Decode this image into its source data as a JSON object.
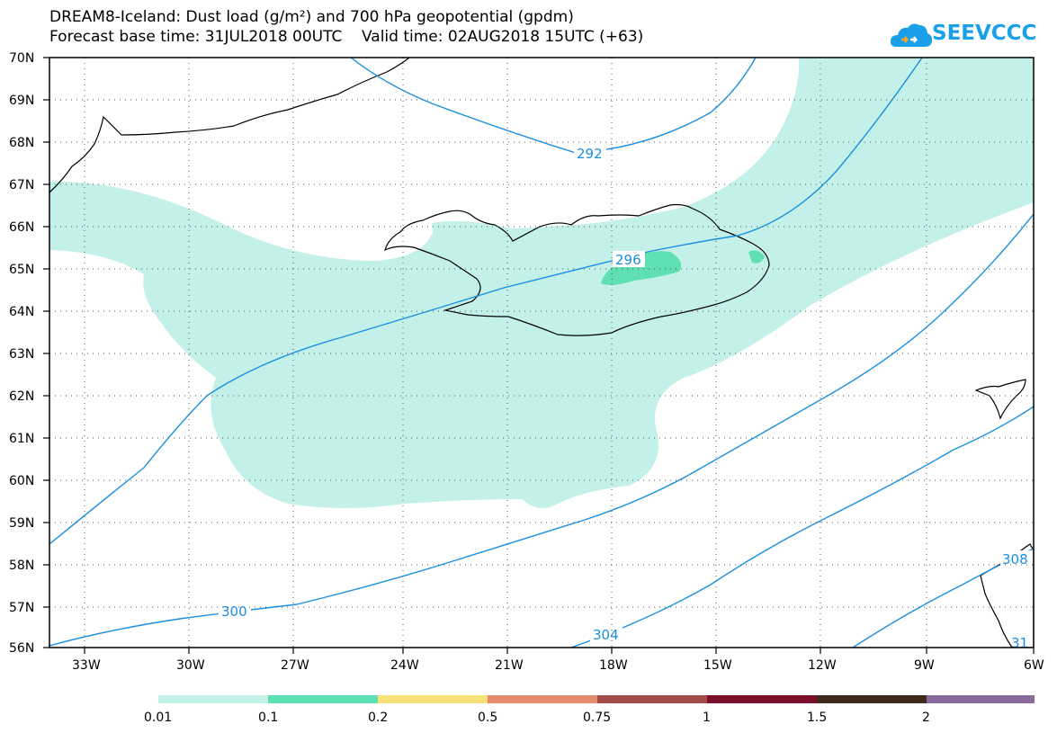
{
  "title_line1": "DREAM8-Iceland: Dust load (g/m²) and 700 hPa geopotential (gpdm)",
  "title_line2": "Forecast base time: 31JUL2018 00UTC    Valid time: 02AUG2018 15UTC (+63)",
  "logo_text": "SEEVCCC",
  "map": {
    "lat_labels": [
      "70N",
      "69N",
      "68N",
      "67N",
      "66N",
      "65N",
      "64N",
      "63N",
      "62N",
      "61N",
      "60N",
      "59N",
      "58N",
      "57N",
      "56N"
    ],
    "lon_labels": [
      "33W",
      "30W",
      "27W",
      "24W",
      "21W",
      "18W",
      "15W",
      "12W",
      "9W",
      "6W"
    ],
    "contour_labels": [
      {
        "text": "292"
      },
      {
        "text": "296"
      },
      {
        "text": "300"
      },
      {
        "text": "304"
      },
      {
        "text": "308"
      },
      {
        "text": "31"
      }
    ],
    "colors": {
      "contour": "#1a8fe0",
      "dust_001": "#c4f0ea",
      "dust_01": "#5ee0b2",
      "coast": "#000000"
    }
  },
  "colorbar": {
    "colors": [
      "#c4f0ea",
      "#5ee0b2",
      "#f7e27a",
      "#e48c6c",
      "#a44c48",
      "#7c0f2c",
      "#3e2a18",
      "#8a6a9a"
    ],
    "labels": [
      "0.01",
      "0.1",
      "0.2",
      "0.5",
      "0.75",
      "1",
      "1.5",
      "2"
    ]
  }
}
